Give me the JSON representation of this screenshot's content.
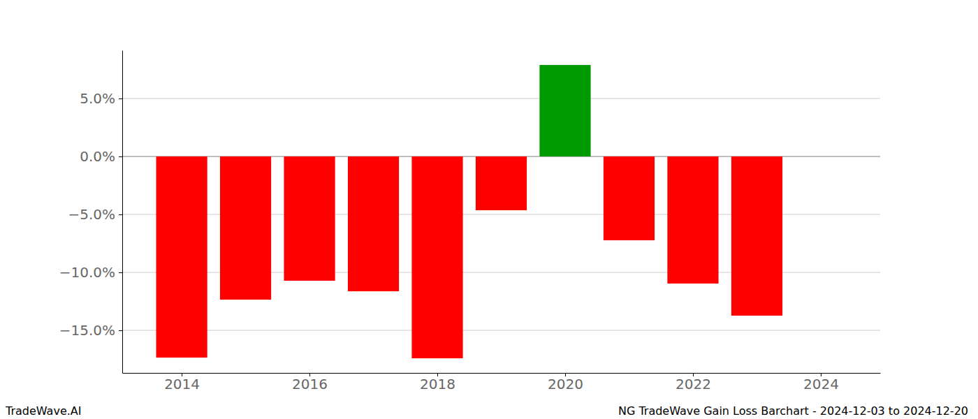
{
  "chart_data": {
    "type": "bar",
    "title": "NG TradeWave Gain Loss Barchart - 2024-12-03 to 2024-12-20",
    "annotations": [
      "TradeWave.AI"
    ],
    "x": [
      2014,
      2015,
      2016,
      2017,
      2018,
      2019,
      2020,
      2021,
      2022,
      2023
    ],
    "values": [
      -17.35,
      -12.35,
      -10.72,
      -11.63,
      -17.41,
      -4.64,
      7.89,
      -7.23,
      -10.96,
      -13.73
    ],
    "colors": [
      "#ff0000",
      "#ff0000",
      "#ff0000",
      "#ff0000",
      "#ff0000",
      "#ff0000",
      "#009900",
      "#ff0000",
      "#ff0000",
      "#ff0000"
    ],
    "xlim": [
      2013.07,
      2024.93
    ],
    "xticks": [
      2014,
      2016,
      2018,
      2020,
      2022,
      2024
    ],
    "ylim": [
      -18.67,
      9.16
    ],
    "yticks": [
      {
        "value": -15,
        "label": "−15.0%"
      },
      {
        "value": -10,
        "label": "−10.0%"
      },
      {
        "value": -5,
        "label": "−5.0%"
      },
      {
        "value": 0,
        "label": "0.0%"
      },
      {
        "value": 5,
        "label": "5.0%"
      }
    ],
    "grid": true
  }
}
